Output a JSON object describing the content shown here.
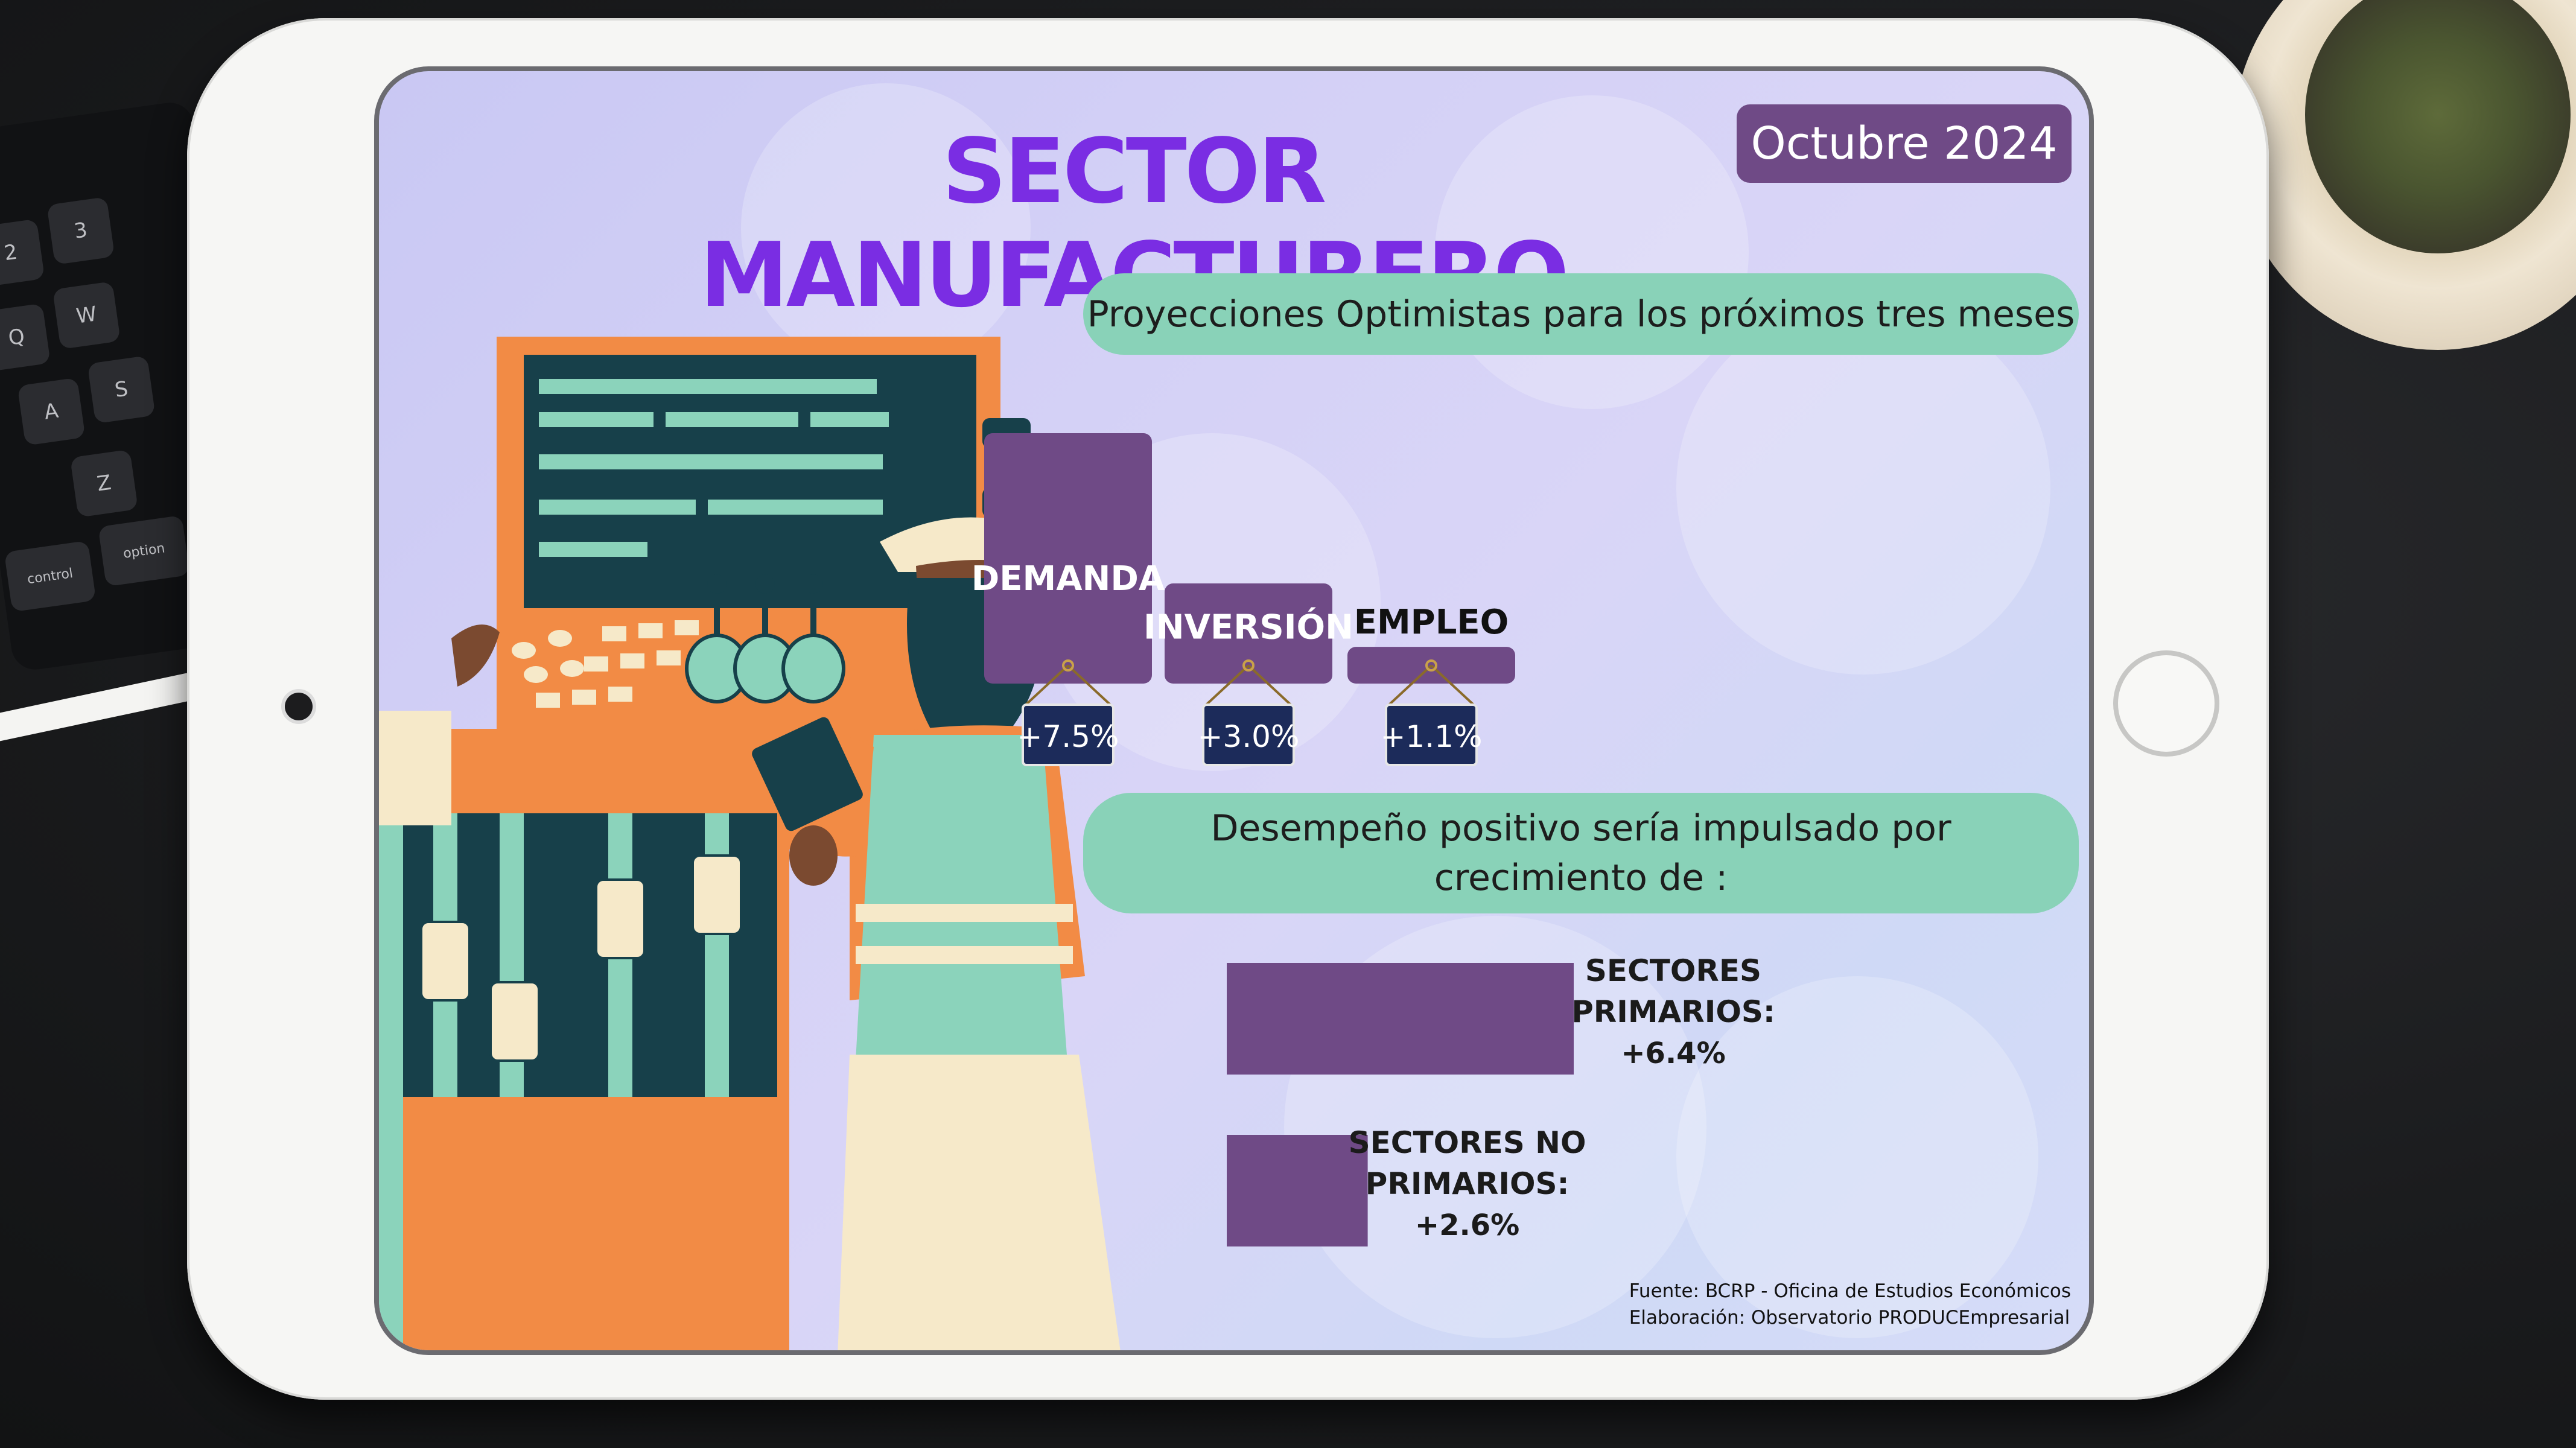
{
  "header": {
    "title": "SECTOR MANUFACTURERO",
    "date": "Octubre 2024"
  },
  "section1": {
    "heading": "Proyecciones Optimistas para los próximos tres meses"
  },
  "section2": {
    "heading": "Desempeño positivo sería impulsado por crecimiento de :"
  },
  "source": {
    "line1": "Fuente: BCRP - Oficina de Estudios Económicos",
    "line2": "Elaboración: Observatorio PRODUCEmpresarial"
  },
  "colors": {
    "bar": "#6f4a86",
    "pill": "#89d2b8",
    "tag": "#1c2b5a",
    "title": "#7a2de3"
  },
  "chart_data": [
    {
      "type": "bar",
      "categories": [
        "DEMANDA",
        "INVERSIÓN",
        "EMPLEO"
      ],
      "values": [
        7.5,
        3.0,
        1.1
      ],
      "value_labels": [
        "+7.5%",
        "+3.0%",
        "+1.1%"
      ],
      "title": "",
      "xlabel": "",
      "ylabel": "",
      "ylim": [
        0,
        7.5
      ]
    },
    {
      "type": "bar",
      "orientation": "horizontal",
      "categories": [
        "SECTORES PRIMARIOS:",
        "SECTORES NO PRIMARIOS:"
      ],
      "category_lines": [
        [
          "SECTORES",
          "PRIMARIOS:"
        ],
        [
          "SECTORES NO",
          "PRIMARIOS:"
        ]
      ],
      "values": [
        6.4,
        2.6
      ],
      "value_labels": [
        "+6.4%",
        "+2.6%"
      ],
      "title": "",
      "xlabel": "",
      "ylabel": "",
      "xlim": [
        0,
        6.4
      ]
    }
  ]
}
